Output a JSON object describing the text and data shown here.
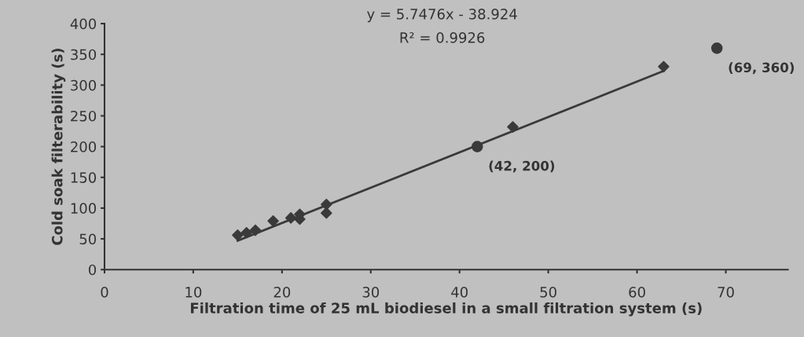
{
  "chart_data": {
    "type": "scatter",
    "xlabel": "Filtration time of 25 mL biodiesel in a small filtration system (s)",
    "ylabel": "Cold soak filterability (s)",
    "xlim": [
      0,
      77
    ],
    "xticks": [
      0,
      10,
      20,
      30,
      40,
      50,
      60,
      70
    ],
    "ylim": [
      0,
      400
    ],
    "yticks": [
      0,
      50,
      100,
      150,
      200,
      250,
      300,
      350,
      400
    ],
    "grid": false,
    "legend": false,
    "series": [
      {
        "marker": "diamond",
        "color": "#3a3a3a",
        "x": [
          15,
          16,
          17,
          19,
          21,
          22,
          22,
          25,
          25,
          46,
          63
        ],
        "values": [
          56,
          60,
          64,
          79,
          84,
          82,
          90,
          106,
          92,
          232,
          330
        ]
      },
      {
        "type": "scatter",
        "marker": "circle",
        "color": "#3a3a3a",
        "x": [
          42,
          69
        ],
        "values": [
          200,
          360
        ]
      },
      {
        "type": "line",
        "marker": "none",
        "line_style": "solid",
        "color": "#3a3a3a",
        "x": [
          15,
          63
        ],
        "values": [
          47,
          323
        ]
      }
    ],
    "annotations": [
      "y = 5.7476x - 38.924",
      "R² = 0.9926",
      {
        "text": "(42, 200)",
        "x": 42,
        "y": 200
      },
      {
        "text": "(69, 360)",
        "x": 69,
        "y": 360
      }
    ]
  }
}
